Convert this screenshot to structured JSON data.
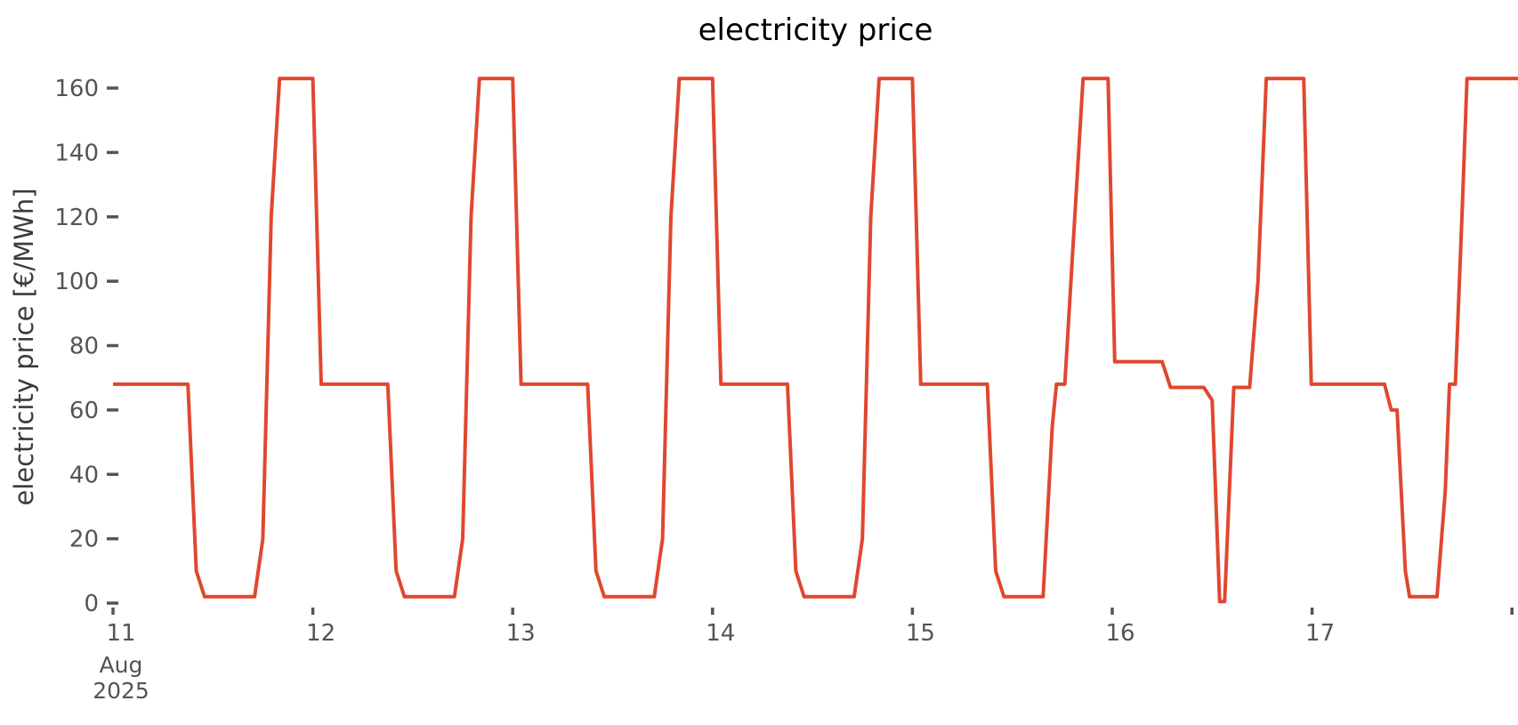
{
  "figure": {
    "title": "electricity price",
    "background": "#ffffff"
  },
  "chart_data": {
    "type": "line",
    "title": "electricity price",
    "xlabel": "",
    "ylabel": "electricity price [€/MWh]",
    "legend": null,
    "grid": false,
    "line_color": "#e0472f",
    "axis_text_color": "#545454",
    "title_color": "#000000",
    "x_unit": "hours since 2025-08-11 00:00",
    "xlim_hours": [
      0,
      169
    ],
    "ylim": [
      -3,
      172
    ],
    "y_ticks": [
      0,
      20,
      40,
      60,
      80,
      100,
      120,
      140,
      160
    ],
    "x_ticks": [
      {
        "t": 0,
        "label": "11"
      },
      {
        "t": 24,
        "label": "12"
      },
      {
        "t": 48,
        "label": "13"
      },
      {
        "t": 72,
        "label": "14"
      },
      {
        "t": 96,
        "label": "15"
      },
      {
        "t": 120,
        "label": "16"
      },
      {
        "t": 144,
        "label": "17"
      },
      {
        "t": 168,
        "label": ""
      }
    ],
    "x_first_tick_sublabels": [
      "Aug",
      "2025"
    ],
    "series": [
      {
        "name": "electricity price",
        "points": [
          [
            0,
            68
          ],
          [
            8,
            68
          ],
          [
            9,
            68
          ],
          [
            10,
            10
          ],
          [
            11,
            2
          ],
          [
            17,
            2
          ],
          [
            18,
            20
          ],
          [
            19,
            120
          ],
          [
            20,
            163
          ],
          [
            24,
            163
          ],
          [
            25,
            68
          ],
          [
            32,
            68
          ],
          [
            33,
            68
          ],
          [
            34,
            10
          ],
          [
            35,
            2
          ],
          [
            41,
            2
          ],
          [
            42,
            20
          ],
          [
            43,
            120
          ],
          [
            44,
            163
          ],
          [
            48,
            163
          ],
          [
            49,
            68
          ],
          [
            56,
            68
          ],
          [
            57,
            68
          ],
          [
            58,
            10
          ],
          [
            59,
            2
          ],
          [
            65,
            2
          ],
          [
            66,
            20
          ],
          [
            67,
            120
          ],
          [
            68,
            163
          ],
          [
            72,
            163
          ],
          [
            73,
            68
          ],
          [
            80,
            68
          ],
          [
            81,
            68
          ],
          [
            82,
            10
          ],
          [
            83,
            2
          ],
          [
            89,
            2
          ],
          [
            90,
            20
          ],
          [
            91,
            120
          ],
          [
            92,
            163
          ],
          [
            96,
            163
          ],
          [
            97,
            68
          ],
          [
            104,
            68
          ],
          [
            105,
            68
          ],
          [
            106,
            10
          ],
          [
            107,
            2
          ],
          [
            111.7,
            2
          ],
          [
            112.8,
            55
          ],
          [
            113.3,
            68
          ],
          [
            114.3,
            68
          ],
          [
            115.5,
            120
          ],
          [
            116.5,
            163
          ],
          [
            119.5,
            163
          ],
          [
            120.3,
            75
          ],
          [
            126,
            75
          ],
          [
            127,
            67
          ],
          [
            131,
            67
          ],
          [
            132,
            63
          ],
          [
            132.9,
            0.5
          ],
          [
            133.5,
            0.5
          ],
          [
            134.6,
            67
          ],
          [
            136.5,
            67
          ],
          [
            137.5,
            100
          ],
          [
            138.5,
            163
          ],
          [
            143,
            163
          ],
          [
            143.9,
            68
          ],
          [
            152.7,
            68
          ],
          [
            153.5,
            60
          ],
          [
            154.2,
            60
          ],
          [
            155.2,
            10
          ],
          [
            155.7,
            2
          ],
          [
            159,
            2
          ],
          [
            160,
            35
          ],
          [
            160.5,
            68
          ],
          [
            161.2,
            68
          ],
          [
            162,
            120
          ],
          [
            162.6,
            163
          ],
          [
            169,
            163
          ]
        ]
      }
    ]
  }
}
